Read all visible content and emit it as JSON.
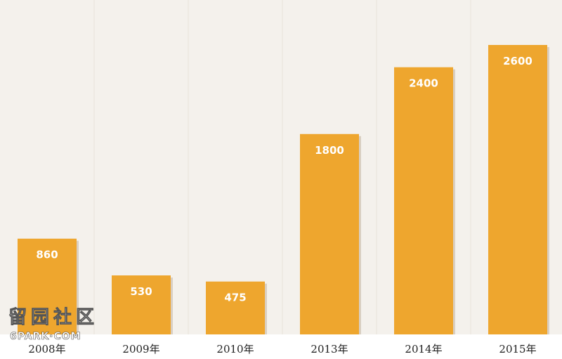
{
  "colors": {
    "background": "#f4f1ec",
    "bar": "#eea62e",
    "bar_shadow": "#d9cfc2",
    "axis_band": "#ffffff",
    "grid": "#e8e3da"
  },
  "watermark": {
    "line1": "留园社区",
    "line2": "6PARK·COM"
  },
  "chart_data": {
    "type": "bar",
    "categories": [
      "2008年",
      "2009年",
      "2010年",
      "2013年",
      "2014年",
      "2015年"
    ],
    "values": [
      860,
      530,
      475,
      1800,
      2400,
      2600
    ],
    "data_labels": [
      "860",
      "530",
      "475",
      "1800",
      "2400",
      "2600"
    ],
    "title": "",
    "xlabel": "",
    "ylabel": "",
    "ylim": [
      0,
      2600
    ],
    "grid": true,
    "legend": "none"
  }
}
